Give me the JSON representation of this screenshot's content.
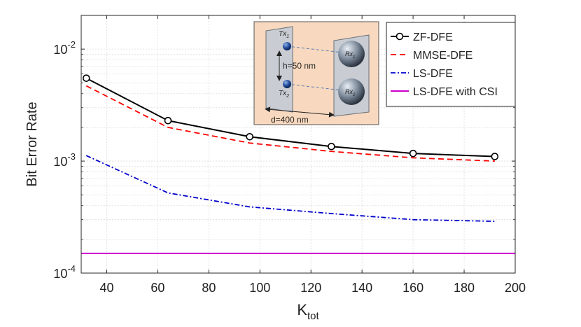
{
  "chart_data": {
    "type": "line",
    "xlabel_main": "K",
    "xlabel_sub": "tot",
    "ylabel": "Bit Error Rate",
    "x": [
      32,
      64,
      96,
      128,
      160,
      192
    ],
    "xlim": [
      30,
      200
    ],
    "ylim": [
      0.0001,
      0.02
    ],
    "yscale": "log",
    "xticks": [
      40,
      60,
      80,
      100,
      120,
      140,
      160,
      180,
      200
    ],
    "yticks": [
      {
        "value": 0.0001,
        "base": "10",
        "exp": "-4"
      },
      {
        "value": 0.001,
        "base": "10",
        "exp": "-3"
      },
      {
        "value": 0.01,
        "base": "10",
        "exp": "-2"
      }
    ],
    "grid": true,
    "legend_position": "top-right",
    "series": [
      {
        "name": "ZF-DFE",
        "color": "#000000",
        "dash": "solid",
        "marker": "circle",
        "values": [
          0.0055,
          0.0023,
          0.00165,
          0.00135,
          0.00117,
          0.0011
        ]
      },
      {
        "name": "MMSE-DFE",
        "color": "#ff0000",
        "dash": "dashed",
        "marker": "none",
        "values": [
          0.0047,
          0.002,
          0.00145,
          0.00122,
          0.00107,
          0.001
        ]
      },
      {
        "name": "LS-DFE",
        "color": "#0000cc",
        "dash": "dashdot",
        "marker": "none",
        "values": [
          0.00112,
          0.00052,
          0.00039,
          0.00034,
          0.0003,
          0.00029
        ]
      },
      {
        "name": "LS-DFE with CSI",
        "color": "#cc00cc",
        "dash": "solid",
        "marker": "none",
        "values": [
          0.00015,
          0.00015,
          0.00015,
          0.00015,
          0.00015,
          0.00015
        ],
        "x_range": [
          30,
          200
        ]
      }
    ],
    "inset": {
      "tx1_main": "Tx",
      "tx1_sub": "1",
      "tx2_main": "Tx",
      "tx2_sub": "2",
      "rx1_main": "Rx",
      "rx1_sub": "1",
      "rx2_main": "Rx",
      "rx2_sub": "2",
      "h_label": "h=50 nm",
      "d_label": "d=400 nm"
    }
  }
}
